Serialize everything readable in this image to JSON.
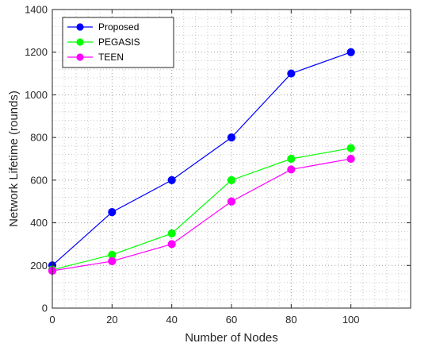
{
  "chart_data": {
    "type": "line",
    "title": "",
    "xlabel": "Number of Nodes",
    "ylabel": "Network Lifetime (rounds)",
    "x": [
      0,
      20,
      40,
      60,
      80,
      100
    ],
    "xlim": [
      0,
      120
    ],
    "ylim": [
      0,
      1400
    ],
    "xticks": [
      "0",
      "20",
      "40",
      "60",
      "80",
      "100"
    ],
    "yticks": [
      "0",
      "200",
      "400",
      "600",
      "800",
      "1000",
      "1200",
      "1400"
    ],
    "grid": "dotted minor grid",
    "legend_position": "top-left",
    "series": [
      {
        "name": "Proposed",
        "color": "#0000ff",
        "values": [
          200,
          450,
          600,
          800,
          1100,
          1200
        ]
      },
      {
        "name": "PEGASIS",
        "color": "#00ff00",
        "values": [
          180,
          250,
          350,
          600,
          700,
          750
        ]
      },
      {
        "name": "TEEN",
        "color": "#ff00ff",
        "values": [
          175,
          220,
          300,
          500,
          650,
          700
        ]
      }
    ]
  }
}
